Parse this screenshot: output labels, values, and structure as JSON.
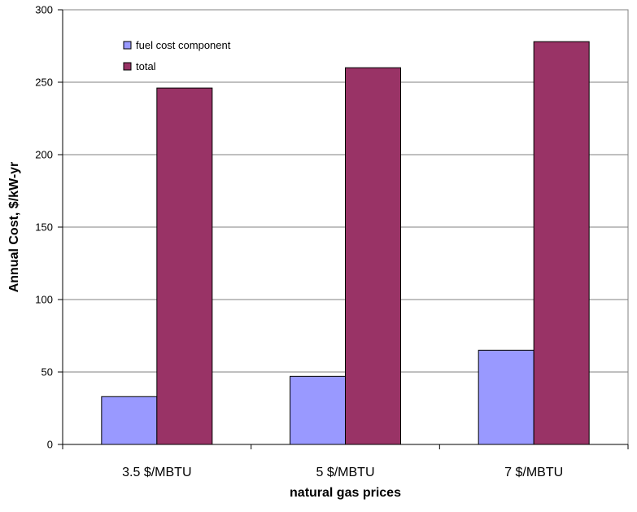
{
  "chart_data": {
    "type": "bar",
    "categories": [
      "3.5 $/MBTU",
      "5 $/MBTU",
      "7 $/MBTU"
    ],
    "series": [
      {
        "name": "fuel cost component",
        "values": [
          33,
          47,
          65
        ],
        "color": "#9999ff"
      },
      {
        "name": "total",
        "values": [
          246,
          260,
          278
        ],
        "color": "#993366"
      }
    ],
    "title": "",
    "xlabel": "natural gas prices",
    "ylabel": "Annual Cost, $/kW-yr",
    "ylim": [
      0,
      300
    ],
    "yticks": [
      0,
      50,
      100,
      150,
      200,
      250,
      300
    ],
    "grid": true,
    "legend_position": "top-left"
  }
}
